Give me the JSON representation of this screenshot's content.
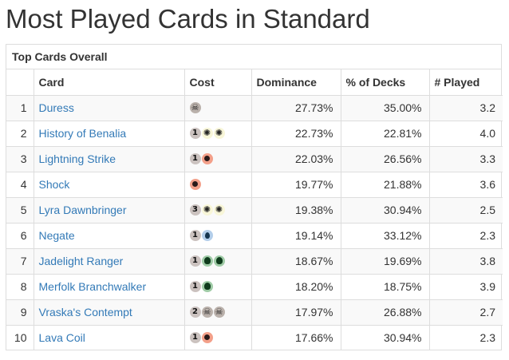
{
  "page": {
    "title": "Most Played Cards in Standard"
  },
  "panel": {
    "heading": "Top Cards Overall"
  },
  "table": {
    "headers": {
      "rank": "",
      "card": "Card",
      "cost": "Cost",
      "dominance": "Dominance",
      "pct_decks": "% of Decks",
      "played": "# Played"
    },
    "rows": [
      {
        "rank": "1",
        "card": "Duress",
        "cost": [
          {
            "type": "B",
            "text": "☠",
            "icon": "black-mana-icon"
          }
        ],
        "dominance": "27.73%",
        "pct_decks": "35.00%",
        "played": "3.2"
      },
      {
        "rank": "2",
        "card": "History of Benalia",
        "cost": [
          {
            "type": "generic",
            "text": "1",
            "icon": "generic-mana-1-icon"
          },
          {
            "type": "W",
            "text": "✺",
            "icon": "white-mana-icon"
          },
          {
            "type": "W",
            "text": "✺",
            "icon": "white-mana-icon"
          }
        ],
        "dominance": "22.73%",
        "pct_decks": "22.81%",
        "played": "4.0"
      },
      {
        "rank": "3",
        "card": "Lightning Strike",
        "cost": [
          {
            "type": "generic",
            "text": "1",
            "icon": "generic-mana-1-icon"
          },
          {
            "type": "R",
            "text": "",
            "icon": "red-mana-icon"
          }
        ],
        "dominance": "22.03%",
        "pct_decks": "26.56%",
        "played": "3.3"
      },
      {
        "rank": "4",
        "card": "Shock",
        "cost": [
          {
            "type": "R",
            "text": "",
            "icon": "red-mana-icon"
          }
        ],
        "dominance": "19.77%",
        "pct_decks": "21.88%",
        "played": "3.6"
      },
      {
        "rank": "5",
        "card": "Lyra Dawnbringer",
        "cost": [
          {
            "type": "generic",
            "text": "3",
            "icon": "generic-mana-3-icon"
          },
          {
            "type": "W",
            "text": "✺",
            "icon": "white-mana-icon"
          },
          {
            "type": "W",
            "text": "✺",
            "icon": "white-mana-icon"
          }
        ],
        "dominance": "19.38%",
        "pct_decks": "30.94%",
        "played": "2.5"
      },
      {
        "rank": "6",
        "card": "Negate",
        "cost": [
          {
            "type": "generic",
            "text": "1",
            "icon": "generic-mana-1-icon"
          },
          {
            "type": "U",
            "text": "",
            "icon": "blue-mana-icon"
          }
        ],
        "dominance": "19.14%",
        "pct_decks": "33.12%",
        "played": "2.3"
      },
      {
        "rank": "7",
        "card": "Jadelight Ranger",
        "cost": [
          {
            "type": "generic",
            "text": "1",
            "icon": "generic-mana-1-icon"
          },
          {
            "type": "G",
            "text": "",
            "icon": "green-mana-icon"
          },
          {
            "type": "G",
            "text": "",
            "icon": "green-mana-icon"
          }
        ],
        "dominance": "18.67%",
        "pct_decks": "19.69%",
        "played": "3.8"
      },
      {
        "rank": "8",
        "card": "Merfolk Branchwalker",
        "cost": [
          {
            "type": "generic",
            "text": "1",
            "icon": "generic-mana-1-icon"
          },
          {
            "type": "G",
            "text": "",
            "icon": "green-mana-icon"
          }
        ],
        "dominance": "18.20%",
        "pct_decks": "18.75%",
        "played": "3.9"
      },
      {
        "rank": "9",
        "card": "Vraska's Contempt",
        "cost": [
          {
            "type": "generic",
            "text": "2",
            "icon": "generic-mana-2-icon"
          },
          {
            "type": "B",
            "text": "☠",
            "icon": "black-mana-icon"
          },
          {
            "type": "B",
            "text": "☠",
            "icon": "black-mana-icon"
          }
        ],
        "dominance": "17.97%",
        "pct_decks": "26.88%",
        "played": "2.7"
      },
      {
        "rank": "10",
        "card": "Lava Coil",
        "cost": [
          {
            "type": "generic",
            "text": "1",
            "icon": "generic-mana-1-icon"
          },
          {
            "type": "R",
            "text": "",
            "icon": "red-mana-icon"
          }
        ],
        "dominance": "17.66%",
        "pct_decks": "30.94%",
        "played": "2.3"
      }
    ]
  }
}
